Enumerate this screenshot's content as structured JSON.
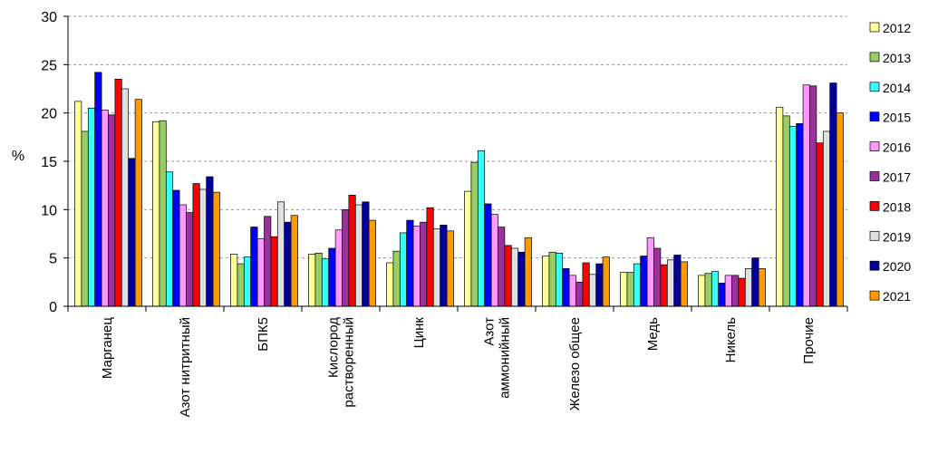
{
  "chart_data": {
    "type": "bar",
    "ylabel": "%",
    "ylim": [
      0,
      30
    ],
    "yticks": [
      0,
      5,
      10,
      15,
      20,
      25,
      30
    ],
    "grid": true,
    "legend_position": "right",
    "categories": [
      [
        "Марганец"
      ],
      [
        "Азот нитритный"
      ],
      [
        "БПК5"
      ],
      [
        "Кислород",
        "растворенный"
      ],
      [
        "Цинк"
      ],
      [
        "Азот",
        "аммонийный"
      ],
      [
        "Железо общее"
      ],
      [
        "Медь"
      ],
      [
        "Никель"
      ],
      [
        "Прочие"
      ]
    ],
    "series": [
      {
        "name": "2012",
        "color": "#FFFF99",
        "values": [
          21.2,
          19.1,
          5.4,
          5.4,
          4.5,
          11.9,
          5.2,
          3.5,
          3.2,
          20.6
        ]
      },
      {
        "name": "2013",
        "color": "#99CC66",
        "values": [
          18.1,
          19.2,
          4.4,
          5.5,
          5.7,
          14.9,
          5.6,
          3.5,
          3.4,
          19.7
        ]
      },
      {
        "name": "2014",
        "color": "#33FFFF",
        "values": [
          20.5,
          13.9,
          5.1,
          4.9,
          7.6,
          16.1,
          5.5,
          4.4,
          3.6,
          18.6
        ]
      },
      {
        "name": "2015",
        "color": "#0000FF",
        "values": [
          24.2,
          12.0,
          8.2,
          6.0,
          8.9,
          10.6,
          3.9,
          5.2,
          2.4,
          18.9
        ]
      },
      {
        "name": "2016",
        "color": "#FF99FF",
        "values": [
          20.3,
          10.5,
          7.0,
          7.9,
          8.3,
          9.5,
          3.2,
          7.1,
          3.2,
          22.9
        ]
      },
      {
        "name": "2017",
        "color": "#993399",
        "values": [
          19.8,
          9.7,
          9.3,
          10.0,
          8.7,
          8.2,
          2.5,
          6.0,
          3.2,
          22.8
        ]
      },
      {
        "name": "2018",
        "color": "#FF0000",
        "values": [
          23.5,
          12.7,
          7.2,
          11.5,
          10.2,
          6.3,
          4.5,
          4.3,
          2.9,
          16.9
        ]
      },
      {
        "name": "2019",
        "color": "#E0E0E0",
        "values": [
          22.5,
          12.1,
          10.8,
          10.5,
          8.0,
          6.0,
          3.3,
          4.8,
          3.9,
          18.1
        ]
      },
      {
        "name": "2020",
        "color": "#000099",
        "values": [
          15.3,
          13.4,
          8.7,
          10.8,
          8.4,
          5.6,
          4.4,
          5.3,
          5.0,
          23.1
        ]
      },
      {
        "name": "2021",
        "color": "#FF9900",
        "values": [
          21.4,
          11.8,
          9.4,
          8.9,
          7.8,
          7.1,
          5.1,
          4.6,
          3.9,
          20.0
        ]
      }
    ]
  }
}
